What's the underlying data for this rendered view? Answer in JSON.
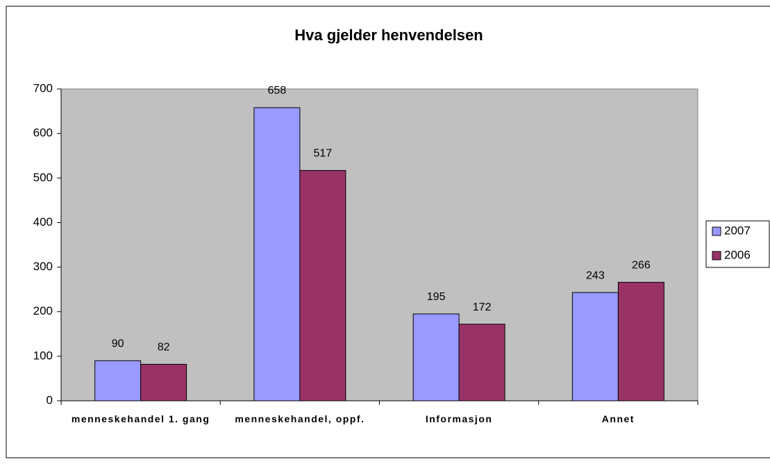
{
  "chart_data": {
    "type": "bar",
    "title": "Hva gjelder henvendelsen",
    "categories": [
      "menneskehandel 1. gang",
      "menneskehandel, oppf.",
      "Informasjon",
      "Annet"
    ],
    "series": [
      {
        "name": "2007",
        "color": "#9999ff",
        "values": [
          90,
          658,
          195,
          243
        ]
      },
      {
        "name": "2006",
        "color": "#993366",
        "values": [
          82,
          517,
          172,
          266
        ]
      }
    ],
    "ylim": [
      0,
      700
    ],
    "yticks": [
      0,
      100,
      200,
      300,
      400,
      500,
      600,
      700
    ],
    "grid": false,
    "legend": "right",
    "plot_background": "#c0c0c0"
  }
}
